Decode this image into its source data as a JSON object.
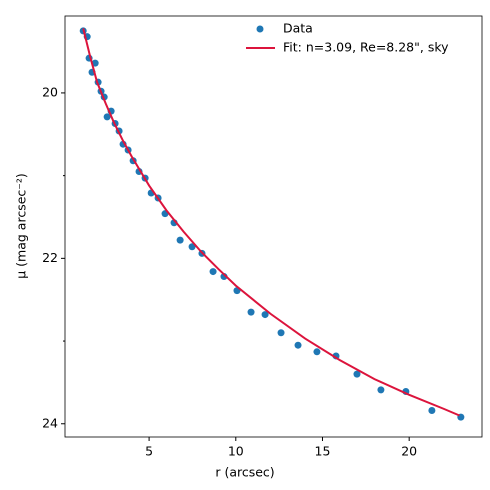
{
  "chart_data": {
    "type": "scatter",
    "xlabel": "r (arcsec)",
    "ylabel": "μ (mag arcsec⁻²)",
    "xlim": [
      0.15,
      24.2
    ],
    "ylim": [
      19.07,
      24.16
    ],
    "y_inverted": true,
    "xticks": [
      5,
      10,
      15,
      20
    ],
    "yticks": [
      20,
      22,
      24
    ],
    "yminor_ticks": [
      21,
      23
    ],
    "legend": "upper right",
    "series": [
      {
        "name": "Data",
        "color": "#1f77b4",
        "kind": "points",
        "x": [
          1.2,
          1.43,
          1.54,
          1.71,
          1.89,
          2.06,
          2.23,
          2.41,
          2.58,
          2.81,
          3.04,
          3.27,
          3.5,
          3.79,
          4.08,
          4.42,
          4.77,
          5.12,
          5.52,
          5.92,
          6.44,
          6.79,
          7.48,
          8.05,
          8.69,
          9.32,
          10.07,
          10.88,
          11.69,
          12.61,
          13.59,
          14.68,
          15.78,
          16.99,
          18.37,
          19.81,
          21.31,
          22.98
        ],
        "values": [
          19.25,
          19.32,
          19.58,
          19.75,
          19.64,
          19.87,
          19.98,
          20.05,
          20.29,
          20.22,
          20.37,
          20.46,
          20.62,
          20.69,
          20.82,
          20.95,
          21.03,
          21.21,
          21.27,
          21.46,
          21.57,
          21.78,
          21.86,
          21.94,
          22.16,
          22.22,
          22.39,
          22.65,
          22.68,
          22.9,
          23.05,
          23.13,
          23.18,
          23.4,
          23.59,
          23.61,
          23.84,
          23.92
        ]
      },
      {
        "name": "Fit: n=3.09, Re=8.28\", sky",
        "color": "#dc143c",
        "kind": "line",
        "x": [
          1.2,
          1.6,
          2,
          2.5,
          3,
          3.5,
          4,
          5,
          6,
          7,
          8,
          9,
          10,
          12,
          14,
          16,
          18,
          20,
          22,
          22.9
        ],
        "values": [
          19.22,
          19.56,
          19.87,
          20.13,
          20.37,
          20.58,
          20.77,
          21.12,
          21.42,
          21.68,
          21.92,
          22.13,
          22.33,
          22.67,
          22.97,
          23.23,
          23.46,
          23.65,
          23.82,
          23.9
        ]
      }
    ]
  }
}
